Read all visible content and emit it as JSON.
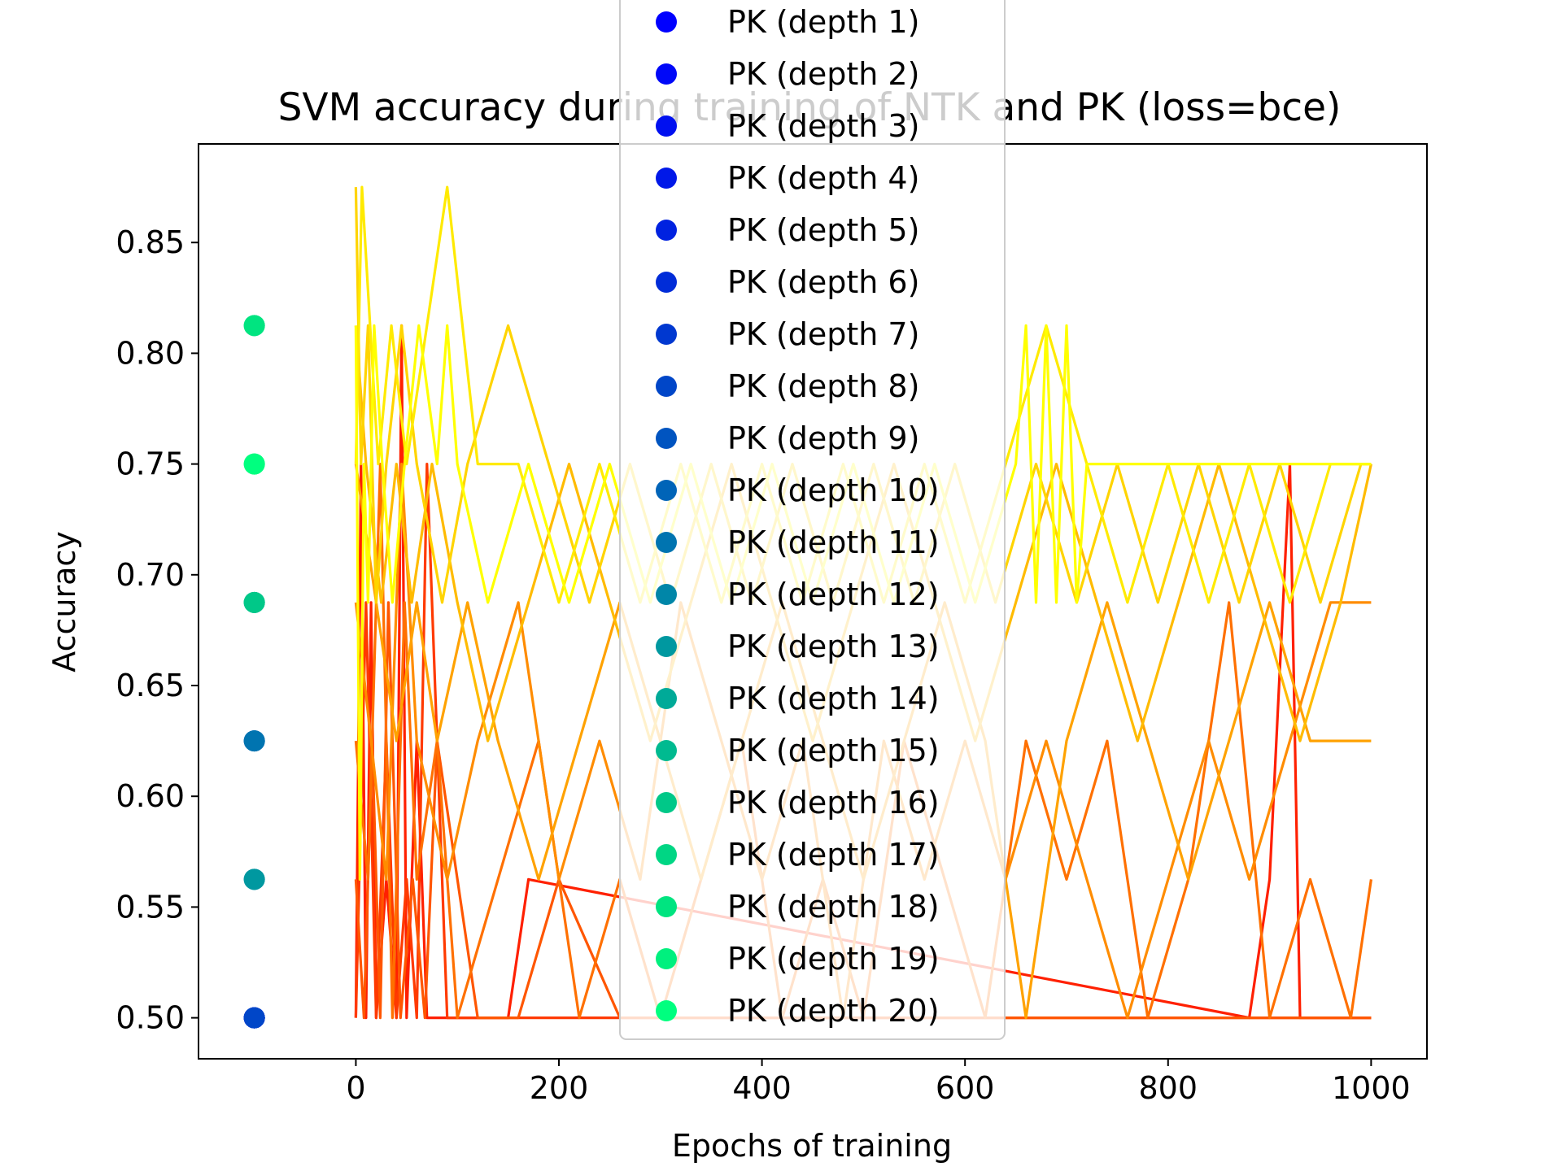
{
  "chart_data": {
    "type": "line",
    "title": "SVM accuracy during training of NTK and PK (loss=bce)",
    "xlabel": "Epochs of training",
    "ylabel": "Accuracy",
    "xlim": [
      -155,
      1055
    ],
    "ylim": [
      0.4815,
      0.8945
    ],
    "xticks": [
      0,
      200,
      400,
      600,
      800,
      1000
    ],
    "yticks": [
      0.5,
      0.55,
      0.6,
      0.65,
      0.7,
      0.75,
      0.8,
      0.85
    ],
    "xtick_labels": [
      "0",
      "200",
      "400",
      "600",
      "800",
      "1000"
    ],
    "ytick_labels": [
      "0.50",
      "0.55",
      "0.60",
      "0.65",
      "0.70",
      "0.75",
      "0.80",
      "0.85"
    ],
    "grid": false,
    "legend_position": "top-center",
    "pk_series": [
      {
        "name": "PK (depth 1)",
        "x": -100,
        "y": 0.5,
        "color": "#0000ff"
      },
      {
        "name": "PK (depth 2)",
        "x": -100,
        "y": 0.5,
        "color": "#0008f8"
      },
      {
        "name": "PK (depth 3)",
        "x": -100,
        "y": 0.5,
        "color": "#0010f0"
      },
      {
        "name": "PK (depth 4)",
        "x": -100,
        "y": 0.5,
        "color": "#0018e8"
      },
      {
        "name": "PK (depth 5)",
        "x": -100,
        "y": 0.5,
        "color": "#0022e0"
      },
      {
        "name": "PK (depth 6)",
        "x": -100,
        "y": 0.5,
        "color": "#002cd8"
      },
      {
        "name": "PK (depth 7)",
        "x": -100,
        "y": 0.5,
        "color": "#0038d0"
      },
      {
        "name": "PK (depth 8)",
        "x": -100,
        "y": 0.5,
        "color": "#0046c8"
      },
      {
        "name": "PK (depth 9)",
        "x": -100,
        "y": 0.625,
        "color": "#0054c0"
      },
      {
        "name": "PK (depth 10)",
        "x": -100,
        "y": 0.625,
        "color": "#0064b8"
      },
      {
        "name": "PK (depth 11)",
        "x": -100,
        "y": 0.625,
        "color": "#0074b0"
      },
      {
        "name": "PK (depth 12)",
        "x": -100,
        "y": 0.5625,
        "color": "#0086a8"
      },
      {
        "name": "PK (depth 13)",
        "x": -100,
        "y": 0.5625,
        "color": "#0098a0"
      },
      {
        "name": "PK (depth 14)",
        "x": -100,
        "y": 0.6875,
        "color": "#00aa98"
      },
      {
        "name": "PK (depth 15)",
        "x": -100,
        "y": 0.6875,
        "color": "#00ba90"
      },
      {
        "name": "PK (depth 16)",
        "x": -100,
        "y": 0.6875,
        "color": "#00c888"
      },
      {
        "name": "PK (depth 17)",
        "x": -100,
        "y": 0.8125,
        "color": "#00d684"
      },
      {
        "name": "PK (depth 18)",
        "x": -100,
        "y": 0.8125,
        "color": "#00e480"
      },
      {
        "name": "PK (depth 19)",
        "x": -100,
        "y": 0.75,
        "color": "#00f07e"
      },
      {
        "name": "PK (depth 20)",
        "x": -100,
        "y": 0.75,
        "color": "#00ff7f"
      }
    ],
    "ntk_series": [
      {
        "color": "#ff2000",
        "x": [
          0,
          5,
          10,
          15,
          20,
          30,
          40,
          45,
          50,
          60,
          70,
          80,
          150,
          170,
          880,
          900,
          920,
          930,
          1000
        ],
        "y": [
          0.5,
          0.75,
          0.5,
          0.6875,
          0.5,
          0.5625,
          0.5,
          0.8125,
          0.5,
          0.625,
          0.5,
          0.5,
          0.5,
          0.5625,
          0.5,
          0.5625,
          0.75,
          0.5,
          0.5
        ]
      },
      {
        "color": "#ff3a00",
        "x": [
          0,
          10,
          20,
          30,
          40,
          50,
          60,
          70,
          90,
          100,
          200,
          300,
          400,
          500,
          600,
          700,
          800,
          900,
          1000
        ],
        "y": [
          0.5,
          0.6875,
          0.5,
          0.625,
          0.5,
          0.5625,
          0.5,
          0.75,
          0.5,
          0.5,
          0.5,
          0.5,
          0.5,
          0.5,
          0.5,
          0.5,
          0.5,
          0.5,
          0.5
        ]
      },
      {
        "color": "#ff5600",
        "x": [
          0,
          8,
          16,
          24,
          32,
          44,
          56,
          68,
          80,
          120,
          160,
          200,
          260,
          320,
          1000
        ],
        "y": [
          0.5625,
          0.5,
          0.625,
          0.5,
          0.6875,
          0.5,
          0.5625,
          0.5,
          0.625,
          0.5,
          0.5,
          0.5625,
          0.5,
          0.5,
          0.5
        ]
      },
      {
        "color": "#ff7000",
        "x": [
          0,
          12,
          24,
          36,
          48,
          60,
          80,
          100,
          140,
          180,
          220,
          260,
          300,
          340,
          380,
          420,
          460,
          500,
          540,
          580,
          620,
          660,
          700,
          740,
          780,
          820,
          860,
          900,
          940,
          980,
          1000
        ],
        "y": [
          0.625,
          0.5625,
          0.75,
          0.5,
          0.6875,
          0.5625,
          0.625,
          0.5,
          0.5625,
          0.625,
          0.5,
          0.5625,
          0.5,
          0.5625,
          0.625,
          0.5,
          0.5625,
          0.5,
          0.625,
          0.5625,
          0.5,
          0.625,
          0.5625,
          0.625,
          0.5,
          0.5625,
          0.6875,
          0.5,
          0.5625,
          0.5,
          0.5625
        ]
      },
      {
        "color": "#ff8c00",
        "x": [
          0,
          15,
          30,
          45,
          60,
          90,
          120,
          160,
          200,
          240,
          280,
          320,
          360,
          400,
          440,
          480,
          520,
          560,
          600,
          640,
          680,
          720,
          760,
          800,
          840,
          880,
          920,
          960,
          1000
        ],
        "y": [
          0.6875,
          0.625,
          0.5625,
          0.75,
          0.625,
          0.5625,
          0.625,
          0.6875,
          0.5625,
          0.625,
          0.5625,
          0.6875,
          0.625,
          0.5625,
          0.625,
          0.5,
          0.625,
          0.5625,
          0.625,
          0.5625,
          0.625,
          0.5625,
          0.5,
          0.5625,
          0.625,
          0.5625,
          0.625,
          0.6875,
          0.6875
        ]
      },
      {
        "color": "#ffa200",
        "x": [
          0,
          20,
          40,
          60,
          80,
          110,
          140,
          180,
          220,
          260,
          300,
          340,
          380,
          420,
          460,
          500,
          540,
          580,
          620,
          660,
          700,
          740,
          780,
          820,
          860,
          900,
          940,
          980,
          1000
        ],
        "y": [
          0.75,
          0.6875,
          0.625,
          0.6875,
          0.625,
          0.6875,
          0.625,
          0.5625,
          0.625,
          0.6875,
          0.625,
          0.5625,
          0.625,
          0.6875,
          0.625,
          0.5625,
          0.625,
          0.6875,
          0.625,
          0.5,
          0.625,
          0.6875,
          0.625,
          0.5625,
          0.625,
          0.6875,
          0.625,
          0.625,
          0.625
        ]
      },
      {
        "color": "#ffbb00",
        "x": [
          0,
          10,
          25,
          40,
          55,
          75,
          100,
          130,
          170,
          210,
          250,
          290,
          330,
          370,
          410,
          450,
          490,
          530,
          570,
          610,
          650,
          690,
          730,
          770,
          810,
          850,
          890,
          930,
          970,
          1000
        ],
        "y": [
          0.8125,
          0.75,
          0.6875,
          0.75,
          0.6875,
          0.75,
          0.6875,
          0.625,
          0.6875,
          0.75,
          0.6875,
          0.625,
          0.6875,
          0.75,
          0.6875,
          0.625,
          0.6875,
          0.75,
          0.6875,
          0.625,
          0.6875,
          0.75,
          0.6875,
          0.625,
          0.6875,
          0.75,
          0.6875,
          0.625,
          0.6875,
          0.75
        ]
      },
      {
        "color": "#ffd400",
        "x": [
          0,
          5,
          12,
          20,
          30,
          45,
          60,
          85,
          110,
          150,
          190,
          230,
          270,
          310,
          350,
          390,
          430,
          470,
          510,
          550,
          590,
          630,
          670,
          710,
          750,
          790,
          830,
          870,
          910,
          950,
          990,
          1000
        ],
        "y": [
          0.875,
          0.75,
          0.8125,
          0.6875,
          0.75,
          0.8125,
          0.75,
          0.6875,
          0.75,
          0.8125,
          0.75,
          0.6875,
          0.75,
          0.6875,
          0.75,
          0.6875,
          0.75,
          0.6875,
          0.75,
          0.6875,
          0.75,
          0.6875,
          0.75,
          0.6875,
          0.75,
          0.6875,
          0.75,
          0.6875,
          0.75,
          0.6875,
          0.75,
          0.75
        ]
      },
      {
        "color": "#ffea00",
        "x": [
          0,
          6,
          14,
          22,
          35,
          50,
          70,
          90,
          120,
          160,
          200,
          240,
          280,
          320,
          360,
          400,
          440,
          480,
          520,
          560,
          600,
          640,
          680,
          720,
          760,
          800,
          840,
          880,
          920,
          960,
          1000
        ],
        "y": [
          0.75,
          0.875,
          0.8125,
          0.75,
          0.8125,
          0.75,
          0.8125,
          0.875,
          0.75,
          0.75,
          0.6875,
          0.75,
          0.6875,
          0.75,
          0.6875,
          0.75,
          0.6875,
          0.75,
          0.6875,
          0.75,
          0.6875,
          0.75,
          0.8125,
          0.75,
          0.6875,
          0.75,
          0.6875,
          0.75,
          0.6875,
          0.75,
          0.75
        ]
      },
      {
        "color": "#ffff00",
        "x": [
          0,
          4,
          8,
          12,
          18,
          26,
          36,
          48,
          62,
          80,
          90,
          100,
          130,
          170,
          210,
          250,
          290,
          330,
          370,
          410,
          450,
          490,
          530,
          570,
          610,
          650,
          660,
          670,
          680,
          690,
          700,
          710,
          720,
          760,
          800,
          840,
          880,
          920,
          960,
          1000
        ],
        "y": [
          0.8125,
          0.5625,
          0.75,
          0.6875,
          0.8125,
          0.75,
          0.6875,
          0.75,
          0.8125,
          0.75,
          0.8125,
          0.75,
          0.6875,
          0.75,
          0.6875,
          0.75,
          0.6875,
          0.75,
          0.6875,
          0.75,
          0.6875,
          0.75,
          0.6875,
          0.75,
          0.6875,
          0.75,
          0.8125,
          0.6875,
          0.8125,
          0.6875,
          0.8125,
          0.6875,
          0.75,
          0.75,
          0.75,
          0.75,
          0.75,
          0.75,
          0.75,
          0.75
        ]
      }
    ]
  }
}
